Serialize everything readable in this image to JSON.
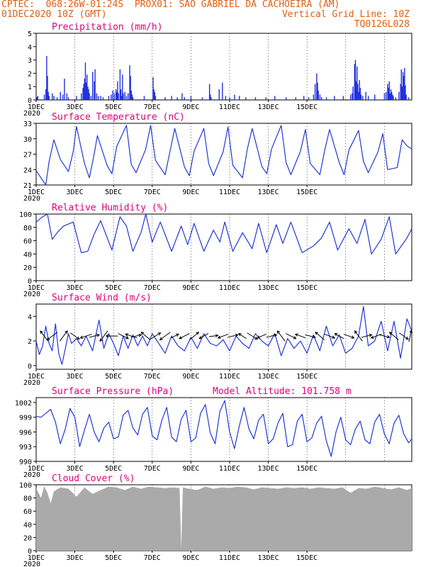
{
  "header": {
    "line1_left": "CPTEC:  068:26W-01:24S  PROX01: SAO GABRIEL DA CACHOEIRA (AM)",
    "line2_left": "01DEC2020 10Z (GMT)",
    "line2_right": "Vertical Grid Line: 10Z",
    "line3_right": "TQ0126L028"
  },
  "x_ticks": [
    "1DEC",
    "3DEC",
    "5DEC",
    "7DEC",
    "9DEC",
    "11DEC",
    "13DEC",
    "15DEC"
  ],
  "x_sub_label": "2020",
  "model_altitude": "Model Altitude: 101.758 m",
  "colors": {
    "line": "#2238d8",
    "bars": "#2030e0",
    "cloud": "#aaaaaa",
    "title": "#e0007a",
    "header": "#e06010"
  },
  "chart_data": [
    {
      "type": "bar",
      "title": "Precipitation (mm/h)",
      "ylim": [
        0,
        5
      ],
      "yticks": [
        0,
        1,
        2,
        3,
        4,
        5
      ],
      "x_unit": "hours since 01DEC2020 10Z",
      "bars": [
        [
          1,
          0.2
        ],
        [
          2,
          0.3
        ],
        [
          10,
          0.4
        ],
        [
          12,
          0.8
        ],
        [
          13,
          3.3
        ],
        [
          14,
          1.8
        ],
        [
          15,
          0.6
        ],
        [
          16,
          0.3
        ],
        [
          20,
          0.5
        ],
        [
          22,
          0.3
        ],
        [
          26,
          0.2
        ],
        [
          30,
          0.6
        ],
        [
          33,
          0.4
        ],
        [
          35,
          1.6
        ],
        [
          38,
          0.5
        ],
        [
          40,
          0.2
        ],
        [
          50,
          0.3
        ],
        [
          56,
          0.5
        ],
        [
          58,
          0.9
        ],
        [
          59,
          1.2
        ],
        [
          60,
          1.6
        ],
        [
          61,
          2.8
        ],
        [
          62,
          1.3
        ],
        [
          63,
          1.9
        ],
        [
          64,
          1.0
        ],
        [
          65,
          0.8
        ],
        [
          66,
          0.5
        ],
        [
          68,
          0.3
        ],
        [
          70,
          2.1
        ],
        [
          72,
          1.4
        ],
        [
          73,
          2.3
        ],
        [
          75,
          0.5
        ],
        [
          77,
          0.3
        ],
        [
          80,
          0.3
        ],
        [
          83,
          0.2
        ],
        [
          90,
          0.3
        ],
        [
          93,
          0.4
        ],
        [
          95,
          0.7
        ],
        [
          97,
          0.5
        ],
        [
          99,
          0.8
        ],
        [
          100,
          0.6
        ],
        [
          101,
          1.4
        ],
        [
          102,
          0.5
        ],
        [
          104,
          2.3
        ],
        [
          105,
          0.8
        ],
        [
          106,
          0.3
        ],
        [
          107,
          1.9
        ],
        [
          108,
          0.5
        ],
        [
          110,
          0.6
        ],
        [
          112,
          0.3
        ],
        [
          114,
          0.5
        ],
        [
          116,
          2.6
        ],
        [
          117,
          1.8
        ],
        [
          118,
          0.7
        ],
        [
          119,
          0.4
        ],
        [
          120,
          0.2
        ],
        [
          134,
          0.3
        ],
        [
          145,
          1.7
        ],
        [
          146,
          0.8
        ],
        [
          147,
          0.6
        ],
        [
          148,
          0.3
        ],
        [
          160,
          0.2
        ],
        [
          168,
          0.3
        ],
        [
          175,
          0.2
        ],
        [
          181,
          0.5
        ],
        [
          184,
          0.2
        ],
        [
          192,
          0.3
        ],
        [
          206,
          0.2
        ],
        [
          215,
          1.2
        ],
        [
          216,
          0.4
        ],
        [
          217,
          0.2
        ],
        [
          227,
          0.8
        ],
        [
          231,
          1.3
        ],
        [
          235,
          0.3
        ],
        [
          240,
          0.2
        ],
        [
          246,
          0.4
        ],
        [
          252,
          0.3
        ],
        [
          260,
          0.2
        ],
        [
          272,
          0.2
        ],
        [
          285,
          0.2
        ],
        [
          296,
          0.3
        ],
        [
          310,
          0.2
        ],
        [
          322,
          0.2
        ],
        [
          332,
          0.3
        ],
        [
          338,
          0.2
        ],
        [
          344,
          0.4
        ],
        [
          346,
          1.2
        ],
        [
          348,
          2.0
        ],
        [
          349,
          1.3
        ],
        [
          350,
          0.7
        ],
        [
          352,
          0.4
        ],
        [
          354,
          0.2
        ],
        [
          360,
          0.2
        ],
        [
          370,
          0.3
        ],
        [
          381,
          0.3
        ],
        [
          390,
          0.4
        ],
        [
          392,
          0.5
        ],
        [
          393,
          1.0
        ],
        [
          395,
          2.7
        ],
        [
          396,
          3.0
        ],
        [
          397,
          1.4
        ],
        [
          398,
          2.5
        ],
        [
          399,
          1.2
        ],
        [
          400,
          0.6
        ],
        [
          401,
          1.5
        ],
        [
          402,
          0.9
        ],
        [
          403,
          0.4
        ],
        [
          405,
          0.3
        ],
        [
          409,
          0.6
        ],
        [
          412,
          0.3
        ],
        [
          420,
          0.4
        ],
        [
          432,
          0.5
        ],
        [
          434,
          0.6
        ],
        [
          436,
          1.2
        ],
        [
          437,
          0.9
        ],
        [
          438,
          1.4
        ],
        [
          439,
          0.5
        ],
        [
          440,
          0.8
        ],
        [
          441,
          0.6
        ],
        [
          442,
          0.4
        ],
        [
          443,
          0.3
        ],
        [
          446,
          0.2
        ],
        [
          450,
          0.6
        ],
        [
          452,
          1.2
        ],
        [
          453,
          2.3
        ],
        [
          454,
          1.0
        ],
        [
          455,
          2.1
        ],
        [
          456,
          1.8
        ],
        [
          457,
          2.4
        ],
        [
          458,
          1.1
        ],
        [
          459,
          0.4
        ],
        [
          462,
          0.2
        ]
      ]
    },
    {
      "type": "line",
      "title": "Surface Temperature (nC)",
      "ylim": [
        21,
        33
      ],
      "yticks": [
        21,
        24,
        27,
        30,
        33
      ],
      "x_unit": "hours since 01DEC2020 10Z",
      "x": [
        0,
        12,
        16,
        22,
        30,
        40,
        46,
        50,
        60,
        66,
        72,
        76,
        88,
        94,
        100,
        112,
        118,
        124,
        136,
        142,
        148,
        160,
        166,
        172,
        184,
        190,
        196,
        208,
        214,
        220,
        232,
        238,
        244,
        256,
        262,
        268,
        280,
        286,
        292,
        304,
        310,
        316,
        328,
        334,
        340,
        352,
        358,
        364,
        376,
        382,
        388,
        400,
        406,
        412,
        424,
        430,
        436,
        448,
        454,
        460,
        466
      ],
      "values": [
        23.8,
        21.0,
        25.5,
        29.8,
        26.0,
        23.6,
        27.5,
        32.4,
        25.2,
        22.4,
        27.0,
        30.6,
        24.8,
        23.2,
        28.5,
        32.6,
        25.0,
        23.4,
        28.0,
        32.6,
        25.8,
        23.0,
        27.5,
        32.0,
        24.5,
        22.8,
        27.6,
        32.0,
        25.2,
        22.8,
        27.5,
        32.3,
        24.8,
        22.4,
        28.0,
        32.0,
        24.6,
        23.2,
        28.0,
        32.6,
        25.4,
        23.0,
        27.6,
        31.8,
        25.2,
        23.0,
        27.8,
        31.8,
        25.4,
        23.0,
        27.8,
        31.6,
        25.6,
        23.4,
        27.4,
        31.0,
        24.0,
        24.4,
        29.8,
        28.6,
        28.0
      ]
    },
    {
      "type": "line",
      "title": "Relative Humidity (%)",
      "ylim": [
        0,
        100
      ],
      "yticks": [
        0,
        20,
        40,
        60,
        80,
        100
      ],
      "x_unit": "hours since 01DEC2020 10Z",
      "x": [
        0,
        8,
        14,
        20,
        26,
        34,
        46,
        56,
        64,
        72,
        80,
        94,
        104,
        112,
        120,
        130,
        136,
        144,
        154,
        168,
        180,
        188,
        196,
        208,
        220,
        228,
        234,
        244,
        256,
        268,
        276,
        286,
        298,
        306,
        316,
        330,
        344,
        354,
        364,
        374,
        388,
        398,
        408,
        416,
        428,
        438,
        446,
        460,
        466
      ],
      "values": [
        88,
        96,
        100,
        62,
        72,
        82,
        88,
        42,
        44,
        70,
        90,
        46,
        96,
        82,
        44,
        72,
        100,
        58,
        88,
        44,
        82,
        54,
        86,
        44,
        76,
        58,
        88,
        44,
        72,
        48,
        86,
        42,
        84,
        56,
        88,
        42,
        52,
        64,
        88,
        46,
        78,
        56,
        92,
        40,
        62,
        96,
        40,
        64,
        78
      ]
    },
    {
      "type": "line",
      "title": "Surface Wind (m/s)",
      "ylim": [
        -0.3,
        5
      ],
      "yticks": [
        0,
        2,
        4
      ],
      "x_unit": "hours since 01DEC2020 10Z",
      "x": [
        0,
        4,
        8,
        12,
        16,
        20,
        24,
        28,
        32,
        36,
        40,
        44,
        50,
        56,
        62,
        70,
        78,
        84,
        90,
        96,
        102,
        108,
        114,
        120,
        126,
        132,
        138,
        144,
        152,
        160,
        168,
        176,
        184,
        192,
        200,
        208,
        216,
        224,
        232,
        240,
        248,
        256,
        264,
        272,
        280,
        288,
        296,
        304,
        312,
        320,
        328,
        336,
        344,
        352,
        360,
        368,
        376,
        384,
        392,
        400,
        406,
        412,
        420,
        428,
        436,
        444,
        452,
        460,
        466
      ],
      "values": [
        2.0,
        0.9,
        1.6,
        3.2,
        1.8,
        1.2,
        3.4,
        1.0,
        0.1,
        1.3,
        2.6,
        1.8,
        2.2,
        1.6,
        2.4,
        1.2,
        3.7,
        1.4,
        2.6,
        1.8,
        0.8,
        2.4,
        1.4,
        2.5,
        1.6,
        2.4,
        1.6,
        2.6,
        1.8,
        1.0,
        2.4,
        1.6,
        1.2,
        2.3,
        1.4,
        2.6,
        1.8,
        1.6,
        2.1,
        1.2,
        2.4,
        1.8,
        1.4,
        2.6,
        2.0,
        1.6,
        2.6,
        0.8,
        2.2,
        1.4,
        2.0,
        1.0,
        2.5,
        1.2,
        3.2,
        1.6,
        2.5,
        1.0,
        1.4,
        2.4,
        4.8,
        1.6,
        2.0,
        3.6,
        1.2,
        3.6,
        0.6,
        3.8,
        2.8
      ]
    },
    {
      "type": "line",
      "title": "Surface Pressure (hPa)",
      "ylim": [
        990,
        1003
      ],
      "yticks": [
        990,
        993,
        996,
        999,
        1002
      ],
      "x_unit": "hours since 01DEC2020 10Z",
      "x": [
        0,
        6,
        12,
        18,
        24,
        30,
        36,
        42,
        48,
        54,
        60,
        66,
        72,
        78,
        84,
        90,
        96,
        102,
        108,
        114,
        120,
        126,
        132,
        138,
        144,
        150,
        156,
        162,
        168,
        174,
        180,
        186,
        192,
        198,
        204,
        210,
        216,
        222,
        228,
        234,
        240,
        246,
        252,
        258,
        264,
        270,
        276,
        282,
        288,
        294,
        300,
        306,
        312,
        318,
        324,
        330,
        336,
        342,
        348,
        354,
        360,
        366,
        372,
        378,
        384,
        390,
        396,
        402,
        408,
        414,
        420,
        426,
        432,
        438,
        444,
        450,
        456,
        462,
        466
      ],
      "values": [
        999.2,
        999.0,
        999.8,
        1000.6,
        998.0,
        993.6,
        996.5,
        1000.8,
        999.0,
        993.0,
        996.4,
        999.6,
        996.0,
        994.0,
        996.8,
        998.0,
        994.6,
        995.0,
        999.4,
        1000.4,
        996.8,
        995.4,
        999.6,
        1001.0,
        995.2,
        994.4,
        998.4,
        1001.0,
        995.0,
        994.0,
        998.6,
        1000.4,
        994.0,
        994.8,
        999.8,
        1001.6,
        995.8,
        993.6,
        1000.2,
        1002.4,
        996.0,
        992.6,
        997.2,
        1001.0,
        996.6,
        994.6,
        998.4,
        999.6,
        993.6,
        994.6,
        997.8,
        999.8,
        993.0,
        993.4,
        998.2,
        999.6,
        994.0,
        994.8,
        997.8,
        999.2,
        994.2,
        991.0,
        996.0,
        999.0,
        994.4,
        993.4,
        996.6,
        998.2,
        994.4,
        993.6,
        998.0,
        999.6,
        995.6,
        993.6,
        997.8,
        999.4,
        995.6,
        993.8,
        994.6
      ]
    },
    {
      "type": "area",
      "title": "Cloud Cover (%)",
      "ylim": [
        0,
        100
      ],
      "yticks": [
        0,
        20,
        40,
        60,
        80,
        100
      ],
      "x_unit": "hours since 01DEC2020 10Z",
      "x": [
        0,
        6,
        10,
        14,
        18,
        22,
        30,
        40,
        50,
        60,
        70,
        80,
        90,
        100,
        110,
        120,
        130,
        140,
        150,
        160,
        170,
        178,
        180,
        182,
        190,
        200,
        210,
        220,
        230,
        240,
        250,
        260,
        270,
        280,
        290,
        300,
        310,
        320,
        330,
        340,
        350,
        360,
        370,
        380,
        390,
        400,
        410,
        420,
        430,
        440,
        450,
        460,
        466
      ],
      "values": [
        95,
        80,
        98,
        88,
        72,
        90,
        96,
        94,
        82,
        96,
        86,
        92,
        97,
        96,
        92,
        97,
        94,
        97,
        96,
        95,
        96,
        95,
        2,
        96,
        94,
        92,
        97,
        94,
        96,
        95,
        97,
        96,
        93,
        96,
        95,
        94,
        96,
        95,
        96,
        94,
        96,
        95,
        94,
        96,
        88,
        95,
        94,
        97,
        95,
        93,
        96,
        92,
        95
      ]
    }
  ],
  "wind_arrows": [
    {
      "t": 10,
      "u": -0.6,
      "v": 0.8
    },
    {
      "t": 20,
      "u": -0.8,
      "v": -0.6
    },
    {
      "t": 34,
      "u": 0.6,
      "v": 0.8
    },
    {
      "t": 48,
      "u": 0.7,
      "v": -0.5
    },
    {
      "t": 62,
      "u": -0.9,
      "v": -0.3
    },
    {
      "t": 72,
      "u": 0.8,
      "v": 0.2
    },
    {
      "t": 84,
      "u": -0.6,
      "v": -0.8
    },
    {
      "t": 94,
      "u": -0.9,
      "v": 0.0
    },
    {
      "t": 108,
      "u": 0.8,
      "v": -0.4
    },
    {
      "t": 118,
      "u": -0.9,
      "v": 0.3
    },
    {
      "t": 124,
      "u": 0.8,
      "v": 0.2
    },
    {
      "t": 136,
      "u": -0.7,
      "v": 0.6
    },
    {
      "t": 148,
      "u": 0.8,
      "v": 0.5
    },
    {
      "t": 160,
      "u": -0.8,
      "v": -0.6
    },
    {
      "t": 172,
      "u": 0.6,
      "v": 0.3
    },
    {
      "t": 184,
      "u": -0.8,
      "v": -0.4
    },
    {
      "t": 196,
      "u": 0.7,
      "v": 0.6
    },
    {
      "t": 208,
      "u": -0.7,
      "v": -0.4
    },
    {
      "t": 220,
      "u": 0.7,
      "v": 0.1
    },
    {
      "t": 232,
      "u": -0.8,
      "v": -0.3
    },
    {
      "t": 244,
      "u": 0.8,
      "v": 0.2
    },
    {
      "t": 256,
      "u": -0.6,
      "v": 0.4
    },
    {
      "t": 268,
      "u": 0.8,
      "v": -0.5
    },
    {
      "t": 280,
      "u": -0.7,
      "v": -0.3
    },
    {
      "t": 292,
      "u": 0.8,
      "v": 0.2
    },
    {
      "t": 304,
      "u": -0.6,
      "v": 0.8
    },
    {
      "t": 316,
      "u": 0.8,
      "v": -0.4
    },
    {
      "t": 328,
      "u": -0.8,
      "v": 0.3
    },
    {
      "t": 340,
      "u": 0.8,
      "v": -0.2
    },
    {
      "t": 352,
      "u": -0.7,
      "v": 0.6
    },
    {
      "t": 364,
      "u": 0.8,
      "v": -0.3
    },
    {
      "t": 376,
      "u": -0.7,
      "v": 0.4
    },
    {
      "t": 388,
      "u": 0.8,
      "v": -0.3
    },
    {
      "t": 400,
      "u": -0.6,
      "v": 0.8
    },
    {
      "t": 410,
      "u": 0.8,
      "v": 0.2
    },
    {
      "t": 422,
      "u": -0.8,
      "v": -0.3
    },
    {
      "t": 432,
      "u": 0.8,
      "v": -0.2
    },
    {
      "t": 444,
      "u": -0.7,
      "v": 0.6
    },
    {
      "t": 456,
      "u": 0.7,
      "v": -0.5
    },
    {
      "t": 464,
      "u": 0.2,
      "v": 0.9
    }
  ]
}
